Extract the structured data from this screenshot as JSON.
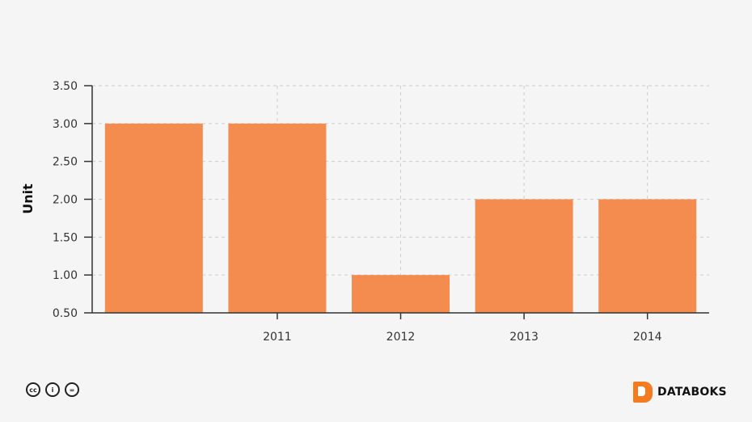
{
  "chart_data": {
    "type": "bar",
    "categories": [
      "",
      "2011",
      "2012",
      "2013",
      "2014"
    ],
    "values": [
      3,
      3,
      1,
      2,
      2
    ],
    "xlabel": "",
    "ylabel": "Unit",
    "ylim": [
      0.5,
      3.5
    ],
    "yticks": [
      "0.50",
      "1.00",
      "1.50",
      "2.00",
      "2.50",
      "3.00",
      "3.50"
    ],
    "grid": true,
    "bar_color": "#f48c4f"
  },
  "footer": {
    "license_icons": [
      "cc-icon",
      "by-icon",
      "nd-icon"
    ],
    "license_labels": [
      "cc",
      "i",
      "="
    ],
    "brand": "DATABOKS",
    "brand_color": "#f47b20"
  }
}
